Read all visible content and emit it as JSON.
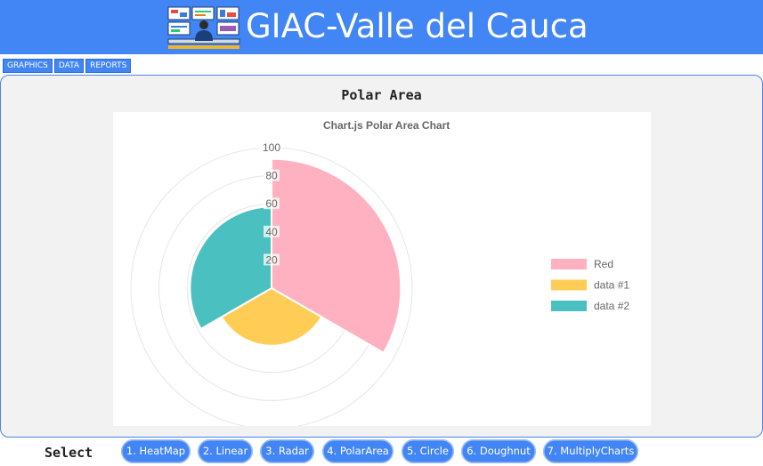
{
  "app": {
    "title": "GIAC-Valle del Cauca"
  },
  "tabs": [
    {
      "label": "GRAPHICS"
    },
    {
      "label": "DATA"
    },
    {
      "label": "REPORTS"
    }
  ],
  "panel": {
    "title": "Polar Area"
  },
  "chart_data": {
    "type": "polar_area",
    "title": "Chart.js Polar Area Chart",
    "categories": [
      "Red",
      "data #1",
      "data #2"
    ],
    "values": [
      92,
      41,
      58
    ],
    "colors": [
      "#ffb1c1",
      "#ffcd56",
      "#4bc0c0"
    ],
    "radial_axis": {
      "min": 0,
      "max": 100,
      "ticks": [
        20,
        40,
        60,
        80,
        100
      ]
    },
    "grid": true,
    "legend_position": "right"
  },
  "bottom": {
    "select_label": "Select",
    "buttons": [
      {
        "label": "1. HeatMap"
      },
      {
        "label": "2. Linear"
      },
      {
        "label": "3. Radar"
      },
      {
        "label": "4. PolarArea"
      },
      {
        "label": "5. Circle"
      },
      {
        "label": "6. Doughnut"
      },
      {
        "label": "7. MultiplyCharts"
      }
    ]
  }
}
